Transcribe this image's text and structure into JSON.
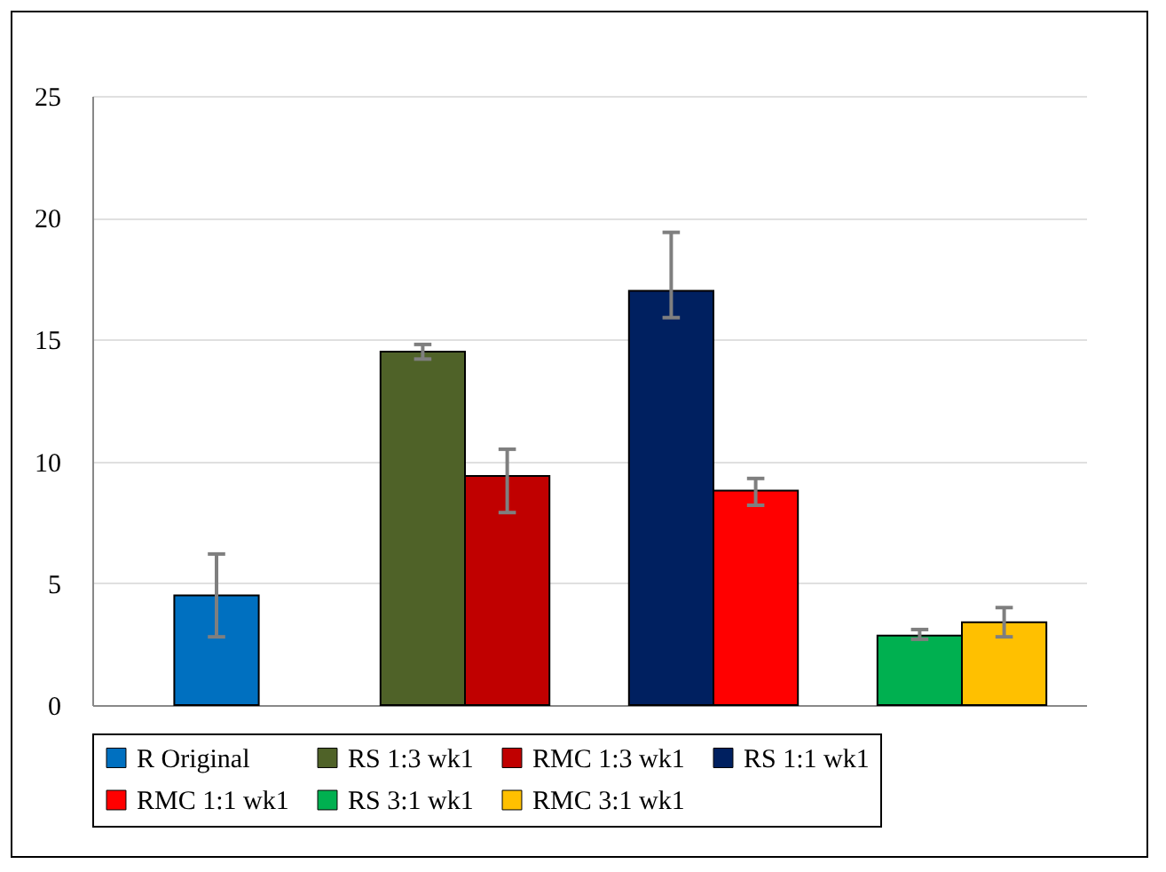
{
  "chart_data": {
    "type": "bar",
    "categories": [
      null,
      null,
      null,
      null
    ],
    "series": [
      {
        "name": "R Original",
        "color": "#0070c0",
        "values": [
          4.5,
          null,
          null,
          null
        ],
        "errors": [
          [
            2.8,
            6.2
          ],
          null,
          null,
          null
        ]
      },
      {
        "name": "RS 1:3 wk1",
        "color": "#4f6228",
        "values": [
          null,
          14.5,
          null,
          null
        ],
        "errors": [
          null,
          [
            14.2,
            14.8
          ],
          null,
          null
        ]
      },
      {
        "name": "RMC 1:3 wk1",
        "color": "#c00000",
        "values": [
          null,
          9.4,
          null,
          null
        ],
        "errors": [
          null,
          [
            7.9,
            10.5
          ],
          null,
          null
        ]
      },
      {
        "name": "RS 1:1 wk1",
        "color": "#002060",
        "values": [
          null,
          null,
          17.0,
          null
        ],
        "errors": [
          null,
          null,
          [
            15.9,
            19.4
          ],
          null
        ]
      },
      {
        "name": "RMC 1:1 wk1",
        "color": "#ff0000",
        "values": [
          null,
          null,
          8.8,
          null
        ],
        "errors": [
          null,
          null,
          [
            8.2,
            9.3
          ],
          null
        ]
      },
      {
        "name": "RS 3:1 wk1",
        "color": "#00b050",
        "values": [
          null,
          null,
          null,
          2.85
        ],
        "errors": [
          null,
          null,
          null,
          [
            2.7,
            3.1
          ]
        ]
      },
      {
        "name": "RMC 3:1 wk1",
        "color": "#ffc000",
        "values": [
          null,
          null,
          null,
          3.4
        ],
        "errors": [
          null,
          null,
          null,
          [
            2.8,
            4.0
          ]
        ]
      }
    ],
    "ylim": [
      0,
      25
    ],
    "yticks": [
      0,
      5,
      10,
      15,
      20,
      25
    ],
    "grid": "y",
    "legend": "bottom"
  }
}
